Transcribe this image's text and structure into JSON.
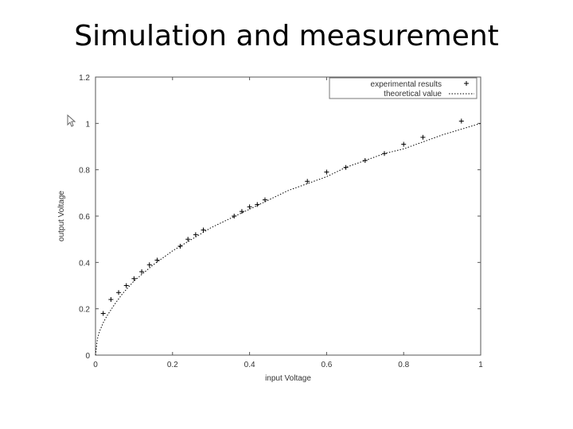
{
  "slide": {
    "title": "Simulation and measurement"
  },
  "icons": {
    "cursor": "mouse-pointer-icon"
  },
  "chart_data": {
    "type": "scatter",
    "title": "",
    "xlabel": "input Voltage",
    "ylabel": "output Voltage",
    "xlim": [
      0,
      1
    ],
    "ylim": [
      0,
      1.2
    ],
    "xticks": [
      "0",
      "0.2",
      "0.4",
      "0.6",
      "0.8",
      "1"
    ],
    "yticks": [
      "0",
      "0.2",
      "0.4",
      "0.6",
      "0.8",
      "1",
      "1.2"
    ],
    "grid": false,
    "legend_position": "top-right",
    "series": [
      {
        "name": "experimental results",
        "kind": "points",
        "marker": "+",
        "color": "#000000",
        "x": [
          0.02,
          0.04,
          0.06,
          0.08,
          0.1,
          0.12,
          0.14,
          0.16,
          0.22,
          0.24,
          0.26,
          0.28,
          0.36,
          0.38,
          0.4,
          0.42,
          0.44,
          0.55,
          0.6,
          0.65,
          0.7,
          0.75,
          0.8,
          0.85,
          0.95
        ],
        "y": [
          0.18,
          0.24,
          0.27,
          0.3,
          0.33,
          0.36,
          0.39,
          0.41,
          0.47,
          0.5,
          0.52,
          0.54,
          0.6,
          0.62,
          0.64,
          0.65,
          0.67,
          0.75,
          0.79,
          0.81,
          0.84,
          0.87,
          0.91,
          0.94,
          1.01
        ]
      },
      {
        "name": "theoretical value",
        "kind": "line",
        "dash": "dotted",
        "color": "#000000",
        "x": [
          0,
          0.005,
          0.01,
          0.02,
          0.03,
          0.05,
          0.07,
          0.1,
          0.15,
          0.2,
          0.25,
          0.3,
          0.35,
          0.4,
          0.45,
          0.5,
          0.55,
          0.6,
          0.65,
          0.7,
          0.75,
          0.8,
          0.85,
          0.9,
          0.95,
          1.0
        ],
        "y": [
          0,
          0.07,
          0.1,
          0.14,
          0.17,
          0.22,
          0.265,
          0.32,
          0.39,
          0.45,
          0.5,
          0.55,
          0.59,
          0.63,
          0.67,
          0.71,
          0.74,
          0.77,
          0.81,
          0.84,
          0.87,
          0.89,
          0.92,
          0.95,
          0.975,
          1.0
        ]
      }
    ]
  }
}
